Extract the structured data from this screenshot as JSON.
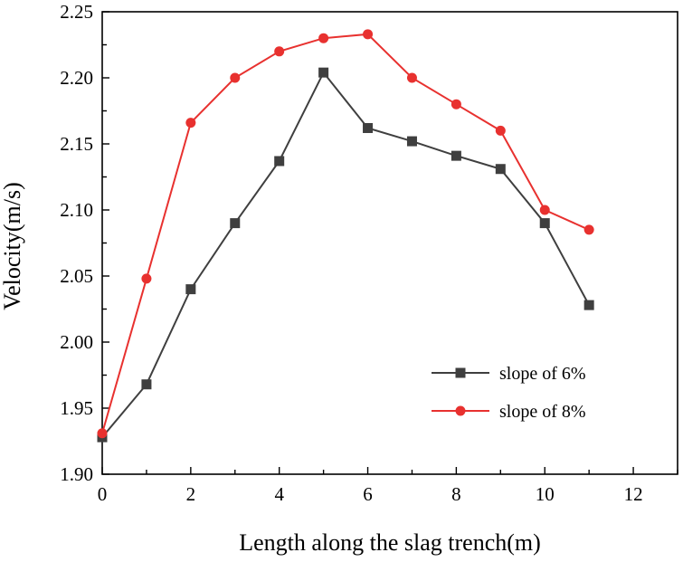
{
  "chart_data": {
    "type": "line",
    "title": "",
    "xlabel": "Length along the slag trench(m)",
    "ylabel": "Velocity(m/s)",
    "xlim": [
      0,
      13
    ],
    "ylim": [
      1.9,
      2.25
    ],
    "x_ticks": [
      0,
      2,
      4,
      6,
      8,
      10,
      12
    ],
    "x_tick_labels": [
      "0",
      "2",
      "4",
      "6",
      "8",
      "10",
      "12"
    ],
    "y_ticks": [
      1.9,
      1.95,
      2.0,
      2.05,
      2.1,
      2.15,
      2.2,
      2.25
    ],
    "y_tick_labels": [
      "1.90",
      "1.95",
      "2.00",
      "2.05",
      "2.10",
      "2.15",
      "2.20",
      "2.25"
    ],
    "grid": false,
    "legend_position": "lower-right",
    "series": [
      {
        "name": "slope of 6%",
        "color": "#3f3f3f",
        "marker": "square",
        "x": [
          0,
          1,
          2,
          3,
          4,
          5,
          6,
          7,
          8,
          9,
          10,
          11
        ],
        "values": [
          1.928,
          1.968,
          2.04,
          2.09,
          2.137,
          2.204,
          2.162,
          2.152,
          2.141,
          2.131,
          2.09,
          2.028
        ]
      },
      {
        "name": "slope of 8%",
        "color": "#e8312f",
        "marker": "circle",
        "x": [
          0,
          1,
          2,
          3,
          4,
          5,
          6,
          7,
          8,
          9,
          10,
          11
        ],
        "values": [
          1.931,
          2.048,
          2.166,
          2.2,
          2.22,
          2.23,
          2.233,
          2.2,
          2.18,
          2.16,
          2.1,
          2.085
        ]
      }
    ]
  }
}
